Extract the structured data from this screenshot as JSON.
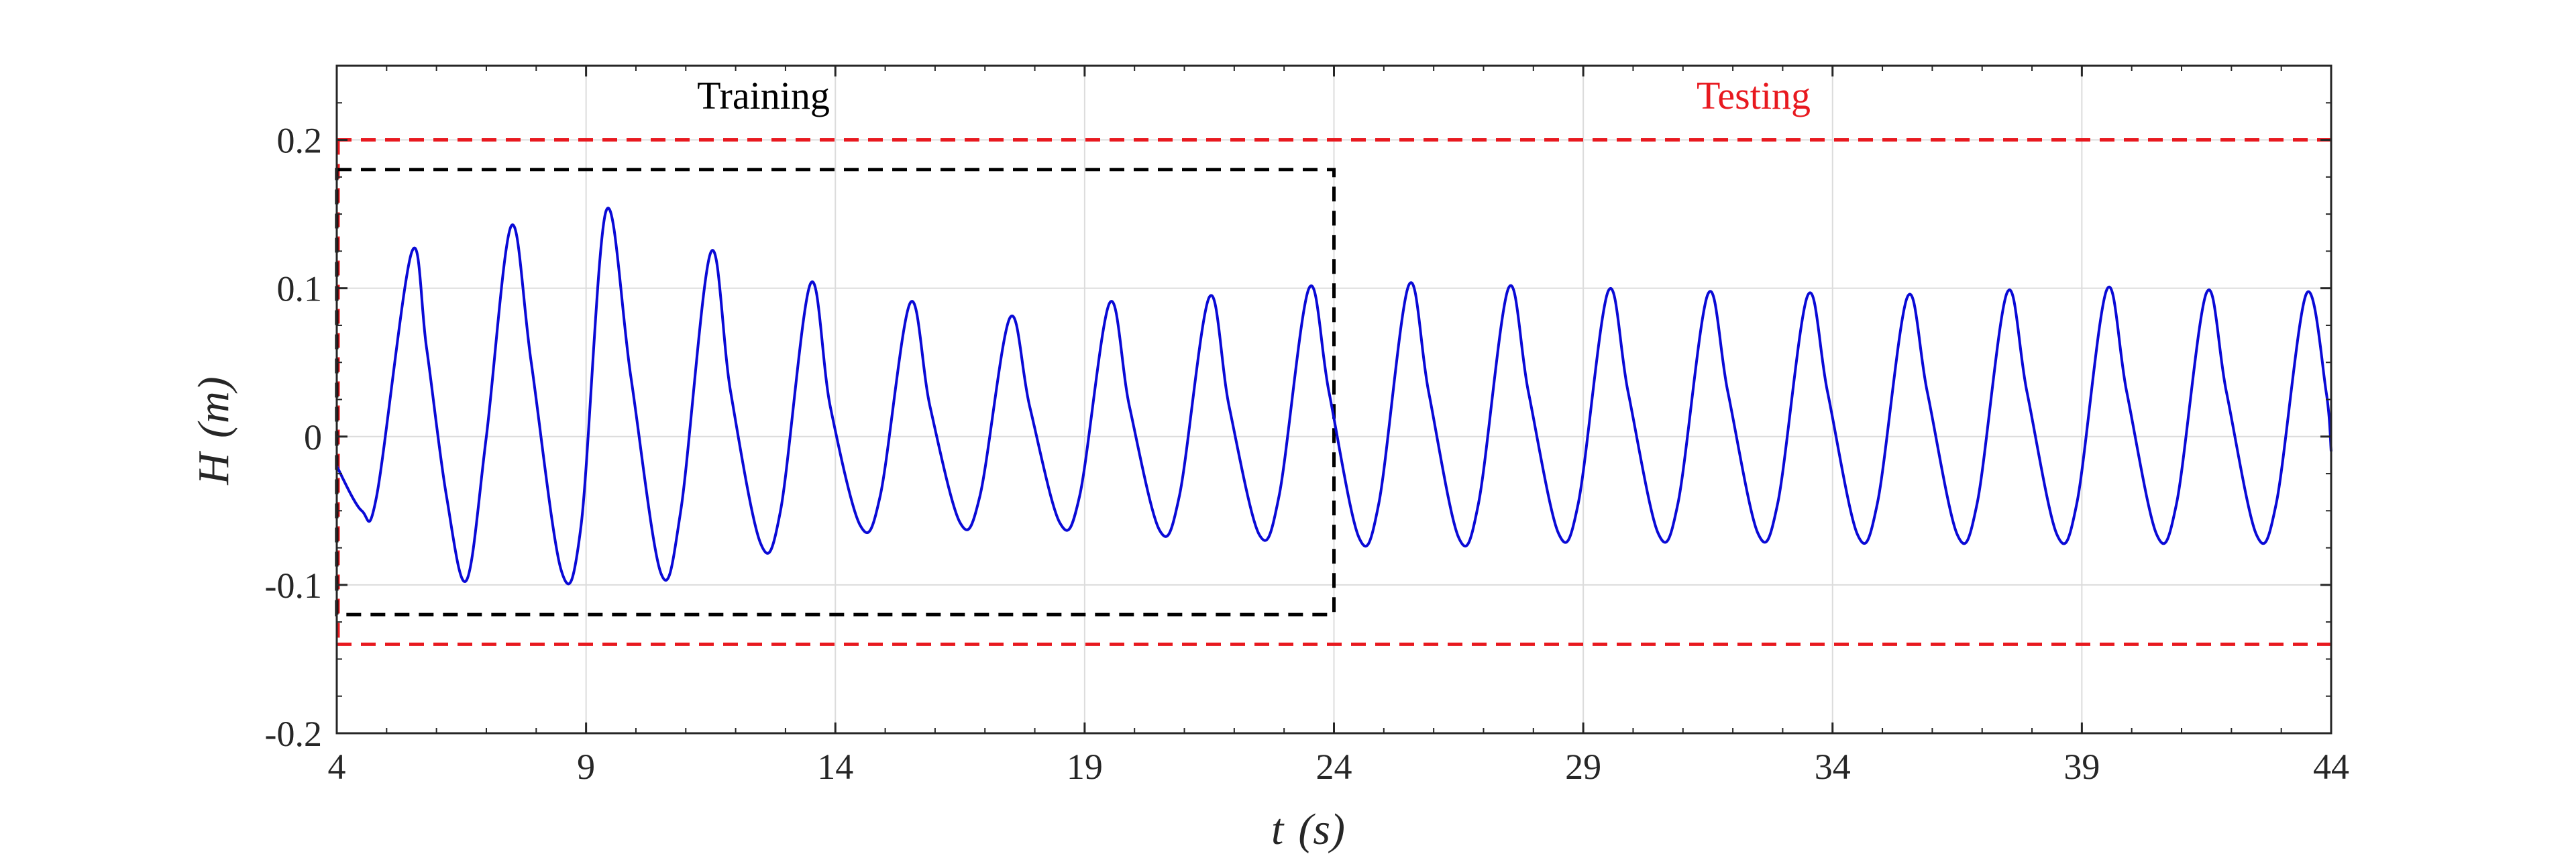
{
  "chart_data": {
    "type": "line",
    "xlabel": "t (s)",
    "xlabel_var": "t",
    "xlabel_unit": "(s)",
    "ylabel": "H (m)",
    "ylabel_var": "H",
    "ylabel_unit": "(m)",
    "xlim": [
      4,
      44
    ],
    "ylim": [
      -0.2,
      0.25
    ],
    "xticks": [
      4,
      9,
      14,
      19,
      24,
      29,
      34,
      39,
      44
    ],
    "xtick_labels": [
      "4",
      "9",
      "14",
      "19",
      "24",
      "29",
      "34",
      "39",
      "44"
    ],
    "yticks": [
      -0.2,
      -0.1,
      0,
      0.1,
      0.2
    ],
    "ytick_labels": [
      "-0.2",
      "-0.1",
      "0",
      "0.1",
      "0.2"
    ],
    "grid": true,
    "annotations": {
      "training": "Training",
      "testing": "Testing"
    },
    "reference_lines": [
      {
        "type": "horizontal",
        "y": 0.2,
        "style": "dashed",
        "color": "#e8191f"
      },
      {
        "type": "horizontal",
        "y": -0.14,
        "style": "dashed",
        "color": "#e8191f"
      }
    ],
    "training_box": {
      "x": [
        4,
        24
      ],
      "y": [
        -0.12,
        0.18
      ],
      "style": "dashed",
      "color": "#000000"
    },
    "series": [
      {
        "color": "#0a0ad6",
        "x": [
          4.0,
          4.5,
          4.8,
          5.5,
          5.8,
          6.2,
          6.6,
          7.0,
          7.5,
          7.9,
          8.5,
          8.9,
          9.4,
          9.9,
          10.5,
          10.9,
          11.5,
          11.9,
          12.5,
          12.9,
          13.5,
          13.9,
          14.5,
          14.9,
          15.5,
          15.9,
          16.5,
          16.9,
          17.5,
          17.9,
          18.5,
          18.9,
          19.5,
          19.9,
          20.5,
          20.9,
          21.5,
          21.9,
          22.5,
          22.9,
          23.5,
          23.9,
          24.5,
          24.9,
          25.5,
          25.9,
          26.5,
          26.9,
          27.5,
          27.9,
          28.5,
          28.9,
          29.5,
          29.9,
          30.5,
          30.9,
          31.5,
          31.9,
          32.5,
          32.9,
          33.5,
          33.9,
          34.5,
          34.9,
          35.5,
          35.9,
          36.5,
          36.9,
          37.5,
          37.9,
          38.5,
          38.9,
          39.5,
          39.9,
          40.5,
          40.9,
          41.5,
          41.9,
          42.5,
          42.9,
          43.5,
          43.9,
          44.0
        ],
        "y": [
          -0.02,
          -0.05,
          -0.04,
          0.124,
          0.06,
          -0.04,
          -0.097,
          0.0,
          0.142,
          0.05,
          -0.09,
          -0.06,
          0.152,
          0.04,
          -0.092,
          -0.05,
          0.124,
          0.03,
          -0.072,
          -0.05,
          0.103,
          0.02,
          -0.06,
          -0.04,
          0.09,
          0.02,
          -0.058,
          -0.04,
          0.08,
          0.02,
          -0.058,
          -0.04,
          0.09,
          0.02,
          -0.063,
          -0.04,
          0.094,
          0.02,
          -0.066,
          -0.04,
          0.1,
          0.03,
          -0.068,
          -0.045,
          0.102,
          0.03,
          -0.068,
          -0.045,
          0.1,
          0.03,
          -0.065,
          -0.045,
          0.098,
          0.03,
          -0.065,
          -0.045,
          0.096,
          0.03,
          -0.065,
          -0.045,
          0.095,
          0.03,
          -0.066,
          -0.045,
          0.094,
          0.03,
          -0.066,
          -0.045,
          0.097,
          0.03,
          -0.066,
          -0.045,
          0.099,
          0.03,
          -0.066,
          -0.045,
          0.097,
          0.03,
          -0.066,
          -0.045,
          0.096,
          0.03,
          -0.01
        ]
      }
    ]
  }
}
